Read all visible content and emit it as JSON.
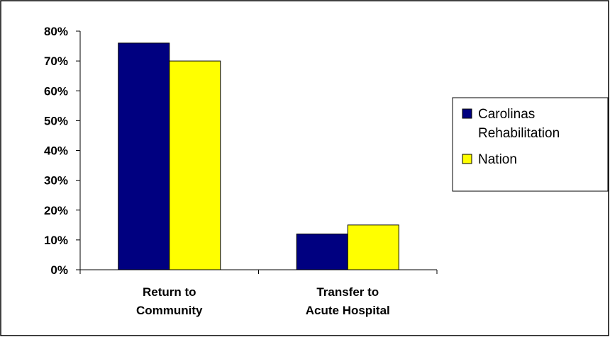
{
  "chart_data": {
    "type": "bar",
    "title": "",
    "xlabel": "",
    "ylabel": "",
    "categories": [
      [
        "Return to",
        "Community"
      ],
      [
        "Transfer to",
        "Acute Hospital"
      ]
    ],
    "series": [
      {
        "name": [
          "Carolinas",
          "Rehabilitation"
        ],
        "values": [
          76,
          12
        ],
        "color": "#000080"
      },
      {
        "name": [
          "Nation"
        ],
        "values": [
          70,
          15
        ],
        "color": "#ffff00"
      }
    ],
    "ylim": [
      0,
      80
    ],
    "yticks": [
      "0%",
      "10%",
      "20%",
      "30%",
      "40%",
      "50%",
      "60%",
      "70%",
      "80%"
    ],
    "grid": false,
    "legend_position": "right"
  }
}
